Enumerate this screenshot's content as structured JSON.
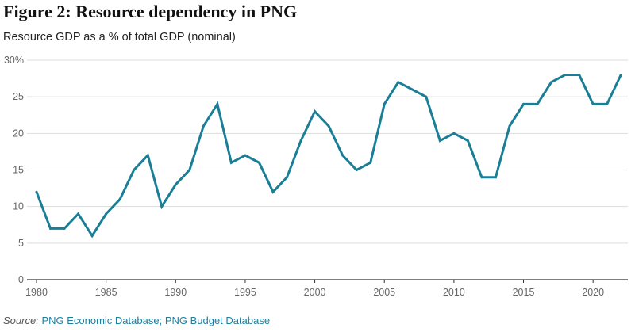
{
  "figure": {
    "title": "Figure 2: Resource dependency in PNG",
    "subtitle": "Resource GDP as a % of total GDP (nominal)"
  },
  "source": {
    "label": "Source:",
    "links": [
      "PNG Economic Database",
      "PNG Budget Database"
    ],
    "separator": ";"
  },
  "chart_data": {
    "type": "line",
    "title": "Resource dependency in PNG",
    "subtitle": "Resource GDP as a % of total GDP (nominal)",
    "x": [
      1980,
      1981,
      1982,
      1983,
      1984,
      1985,
      1986,
      1987,
      1988,
      1989,
      1990,
      1991,
      1992,
      1993,
      1994,
      1995,
      1996,
      1997,
      1998,
      1999,
      2000,
      2001,
      2002,
      2003,
      2004,
      2005,
      2006,
      2007,
      2008,
      2009,
      2010,
      2011,
      2012,
      2013,
      2014,
      2015,
      2016,
      2017,
      2018,
      2019,
      2020,
      2021,
      2022
    ],
    "series": [
      {
        "values": [
          12,
          7,
          7,
          9,
          6,
          9,
          11,
          15,
          17,
          10,
          13,
          15,
          21,
          24,
          16,
          17,
          16,
          12,
          14,
          19,
          23,
          21,
          17,
          15,
          16,
          24,
          27,
          26,
          25,
          19,
          20,
          19,
          14,
          14,
          21,
          24,
          24,
          27,
          28,
          28,
          24,
          24,
          28
        ],
        "color": "#1a7f96"
      }
    ],
    "xlim": [
      1980,
      2022.5
    ],
    "ylim": [
      0,
      30
    ],
    "x_ticks": [
      1980,
      1985,
      1990,
      1995,
      2000,
      2005,
      2010,
      2015,
      2020
    ],
    "y_ticks": [
      0,
      5,
      10,
      15,
      20,
      25,
      30
    ],
    "y_tick_labels": [
      "0",
      "5",
      "10",
      "15",
      "20",
      "25",
      "30%"
    ],
    "grid": true,
    "legend": "none"
  }
}
